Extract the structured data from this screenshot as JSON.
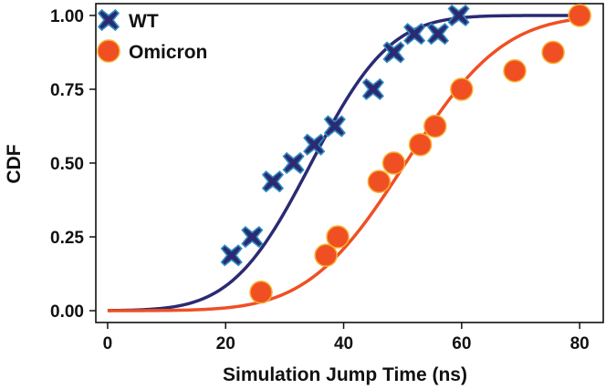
{
  "chart_data": {
    "type": "scatter",
    "title": "",
    "xlabel": "Simulation Jump Time (ns)",
    "ylabel": "CDF",
    "xlim": [
      -2,
      84
    ],
    "ylim": [
      -0.04,
      1.04
    ],
    "xticks": [
      0,
      20,
      40,
      60,
      80
    ],
    "xtick_labels": [
      "0",
      "20",
      "40",
      "60",
      "80"
    ],
    "yticks": [
      0,
      0.25,
      0.5,
      0.75,
      1.0
    ],
    "ytick_labels": [
      "0.00",
      "0.25",
      "0.50",
      "0.75",
      "1.00"
    ],
    "grid": false,
    "legend_position": "top-left",
    "series": [
      {
        "name": "WT",
        "marker": "cross",
        "color": "#2b2a73",
        "edge_color": "#2f8fc0",
        "line_color": "#2b2a73",
        "x": [
          21,
          24.5,
          28,
          31.5,
          35,
          38.5,
          45,
          48.5,
          52,
          56,
          59.5
        ],
        "y": [
          0.1875,
          0.25,
          0.4375,
          0.5,
          0.5625,
          0.625,
          0.75,
          0.875,
          0.9375,
          0.9375,
          1.0
        ],
        "fit": {
          "mu": 34.5,
          "sigma": 10.5
        }
      },
      {
        "name": "Omicron",
        "marker": "circle",
        "color": "#f04f23",
        "edge_color": "#f7b02e",
        "line_color": "#f04f23",
        "x": [
          26,
          37,
          39,
          46,
          48.5,
          53,
          55.5,
          60,
          69,
          75.5,
          80
        ],
        "y": [
          0.0625,
          0.1875,
          0.25,
          0.4375,
          0.5,
          0.5625,
          0.625,
          0.75,
          0.8125,
          0.875,
          1.0
        ],
        "fit": {
          "mu": 50.5,
          "sigma": 13
        }
      }
    ]
  }
}
